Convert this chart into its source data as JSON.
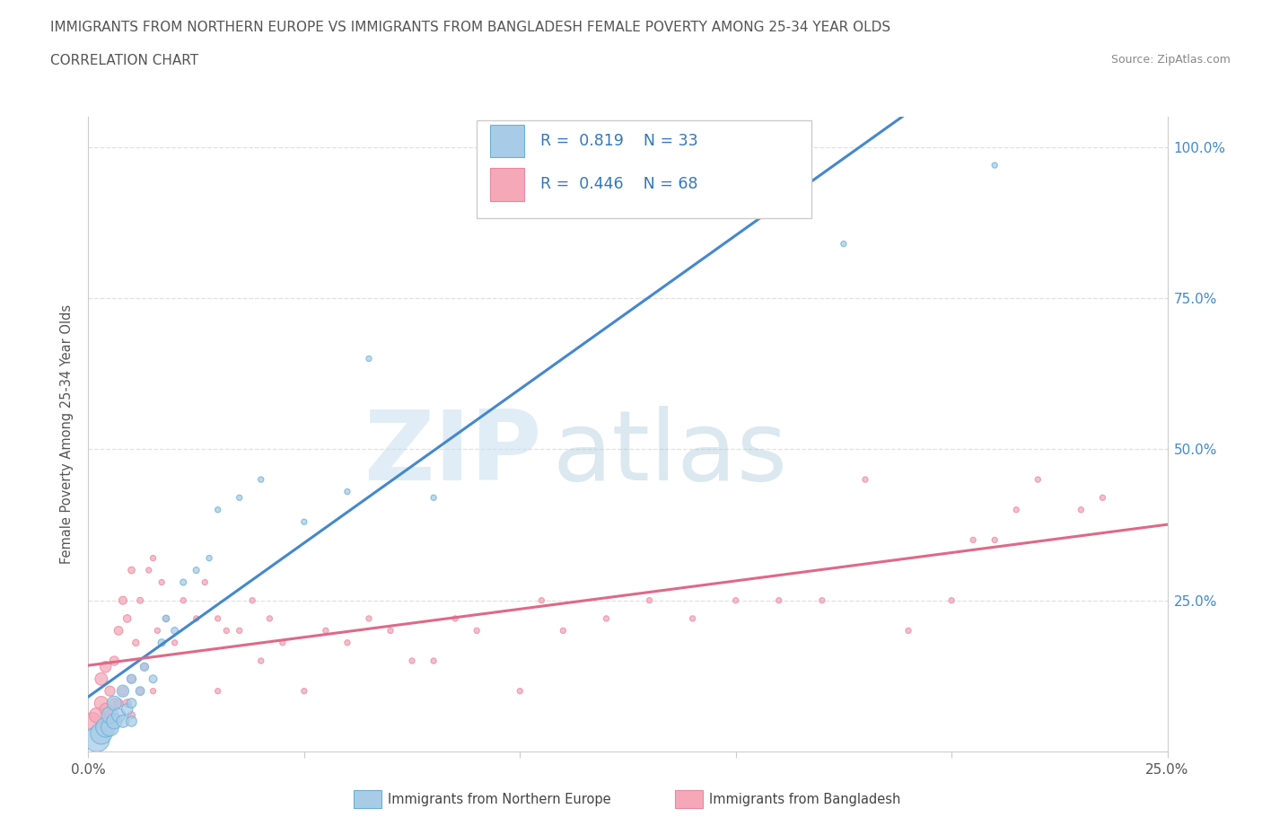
{
  "title_line1": "IMMIGRANTS FROM NORTHERN EUROPE VS IMMIGRANTS FROM BANGLADESH FEMALE POVERTY AMONG 25-34 YEAR OLDS",
  "title_line2": "CORRELATION CHART",
  "source_text": "Source: ZipAtlas.com",
  "watermark_zip": "ZIP",
  "watermark_atlas": "atlas",
  "ylabel": "Female Poverty Among 25-34 Year Olds",
  "xlim": [
    0.0,
    0.25
  ],
  "ylim": [
    0.0,
    1.05
  ],
  "ytick_labels_right": [
    "25.0%",
    "50.0%",
    "75.0%",
    "100.0%"
  ],
  "ytick_positions_right": [
    0.25,
    0.5,
    0.75,
    1.0
  ],
  "blue_R": 0.819,
  "blue_N": 33,
  "pink_R": 0.446,
  "pink_N": 68,
  "blue_color": "#a8cce8",
  "pink_color": "#f4a8b8",
  "blue_edge_color": "#6aaed6",
  "pink_edge_color": "#e888a0",
  "blue_line_color": "#4488cc",
  "pink_line_color": "#e06888",
  "legend_label_blue": "Immigrants from Northern Europe",
  "legend_label_pink": "Immigrants from Bangladesh",
  "blue_scatter_x": [
    0.002,
    0.003,
    0.004,
    0.005,
    0.005,
    0.006,
    0.006,
    0.007,
    0.008,
    0.008,
    0.009,
    0.01,
    0.01,
    0.01,
    0.012,
    0.013,
    0.015,
    0.017,
    0.018,
    0.02,
    0.022,
    0.025,
    0.028,
    0.03,
    0.035,
    0.04,
    0.05,
    0.06,
    0.065,
    0.08,
    0.1,
    0.175,
    0.21
  ],
  "blue_scatter_y": [
    0.02,
    0.03,
    0.04,
    0.04,
    0.06,
    0.05,
    0.08,
    0.06,
    0.05,
    0.1,
    0.07,
    0.05,
    0.08,
    0.12,
    0.1,
    0.14,
    0.12,
    0.18,
    0.22,
    0.2,
    0.28,
    0.3,
    0.32,
    0.4,
    0.42,
    0.45,
    0.38,
    0.43,
    0.65,
    0.42,
    0.96,
    0.84,
    0.97
  ],
  "blue_scatter_size": [
    400,
    300,
    250,
    200,
    180,
    150,
    130,
    120,
    100,
    90,
    80,
    70,
    60,
    55,
    50,
    45,
    40,
    35,
    30,
    30,
    25,
    25,
    20,
    20,
    20,
    20,
    20,
    20,
    20,
    20,
    20,
    20,
    20
  ],
  "pink_scatter_x": [
    0.001,
    0.002,
    0.003,
    0.003,
    0.004,
    0.004,
    0.005,
    0.005,
    0.006,
    0.006,
    0.007,
    0.007,
    0.008,
    0.008,
    0.009,
    0.009,
    0.01,
    0.01,
    0.01,
    0.011,
    0.012,
    0.012,
    0.013,
    0.014,
    0.015,
    0.015,
    0.016,
    0.017,
    0.018,
    0.02,
    0.022,
    0.025,
    0.027,
    0.03,
    0.03,
    0.032,
    0.035,
    0.038,
    0.04,
    0.042,
    0.045,
    0.05,
    0.055,
    0.06,
    0.065,
    0.07,
    0.075,
    0.08,
    0.085,
    0.09,
    0.1,
    0.105,
    0.11,
    0.12,
    0.13,
    0.14,
    0.15,
    0.16,
    0.17,
    0.18,
    0.19,
    0.2,
    0.205,
    0.21,
    0.215,
    0.22,
    0.23,
    0.235
  ],
  "pink_scatter_y": [
    0.05,
    0.06,
    0.08,
    0.12,
    0.07,
    0.14,
    0.06,
    0.1,
    0.08,
    0.15,
    0.08,
    0.2,
    0.1,
    0.25,
    0.08,
    0.22,
    0.06,
    0.12,
    0.3,
    0.18,
    0.1,
    0.25,
    0.14,
    0.3,
    0.1,
    0.32,
    0.2,
    0.28,
    0.22,
    0.18,
    0.25,
    0.22,
    0.28,
    0.1,
    0.22,
    0.2,
    0.2,
    0.25,
    0.15,
    0.22,
    0.18,
    0.1,
    0.2,
    0.18,
    0.22,
    0.2,
    0.15,
    0.15,
    0.22,
    0.2,
    0.1,
    0.25,
    0.2,
    0.22,
    0.25,
    0.22,
    0.25,
    0.25,
    0.25,
    0.45,
    0.2,
    0.25,
    0.35,
    0.35,
    0.4,
    0.45,
    0.4,
    0.42
  ],
  "pink_scatter_size": [
    200,
    150,
    120,
    100,
    90,
    80,
    70,
    65,
    60,
    55,
    50,
    48,
    45,
    42,
    40,
    38,
    35,
    33,
    30,
    28,
    26,
    24,
    22,
    20,
    20,
    20,
    20,
    20,
    20,
    20,
    20,
    20,
    20,
    20,
    20,
    20,
    20,
    20,
    20,
    20,
    20,
    20,
    20,
    20,
    20,
    20,
    20,
    20,
    20,
    20,
    20,
    20,
    20,
    20,
    20,
    20,
    20,
    20,
    20,
    20,
    20,
    20,
    20,
    20,
    20,
    20,
    20,
    20
  ],
  "grid_color": "#dddddd",
  "bg_color": "#ffffff"
}
